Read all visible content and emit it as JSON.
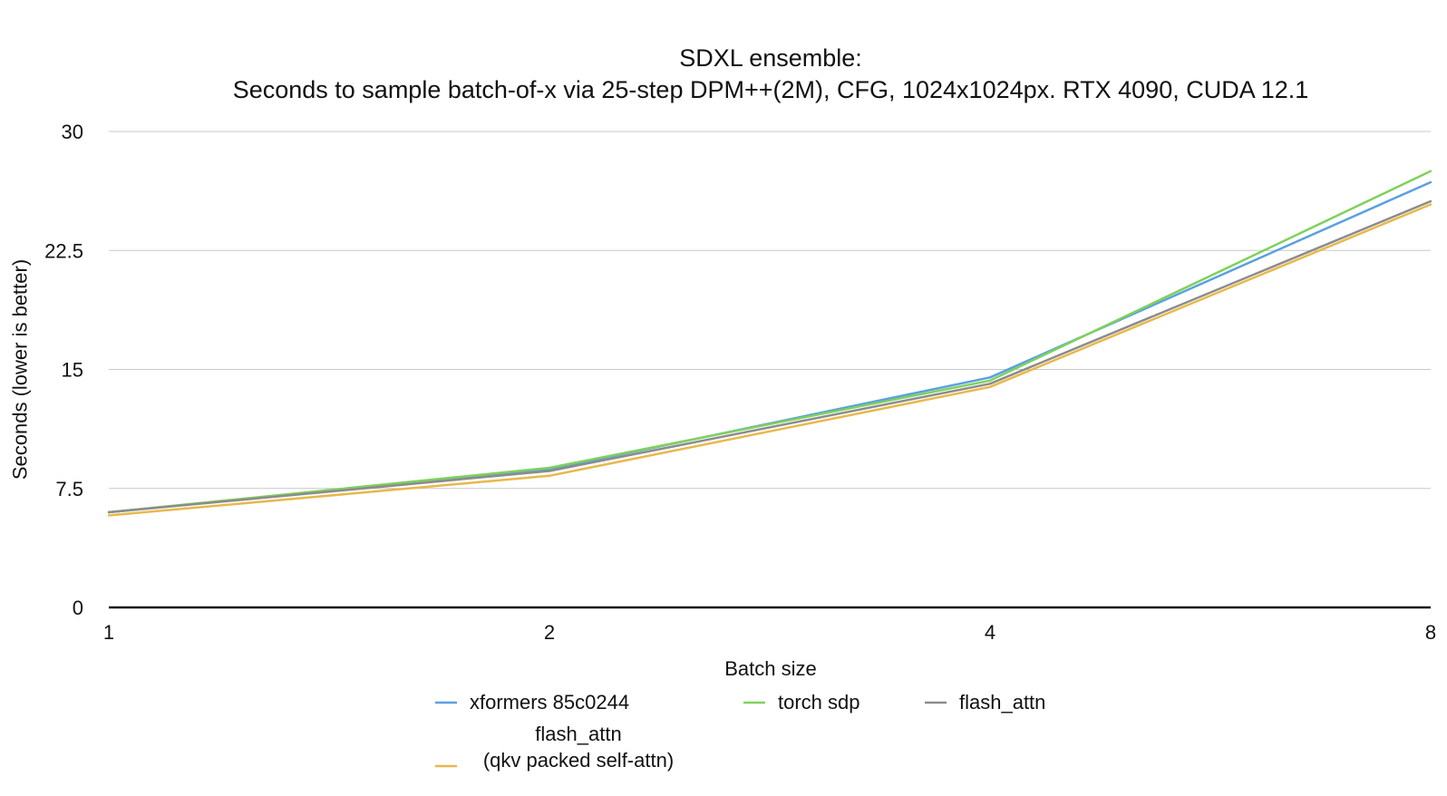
{
  "chart_data": {
    "type": "line",
    "title": "SDXL ensemble:",
    "subtitle": "Seconds to sample batch-of-x via 25-step DPM++(2M), CFG, 1024x1024px. RTX 4090, CUDA 12.1",
    "xlabel": "Batch size",
    "ylabel": "Seconds (lower is better)",
    "x": [
      1,
      2,
      4,
      8
    ],
    "x_tick_labels": [
      "1",
      "2",
      "4",
      "8"
    ],
    "x_scale": "log2",
    "ylim": [
      0,
      30
    ],
    "y_ticks": [
      0,
      7.5,
      15,
      22.5,
      30
    ],
    "y_tick_labels": [
      "0",
      "7.5",
      "15",
      "22.5",
      "30"
    ],
    "grid": true,
    "legend_position": "bottom",
    "series": [
      {
        "name": "xformers 85c0244",
        "color": "#5aa0e0",
        "values": [
          6.0,
          8.7,
          14.5,
          26.8
        ]
      },
      {
        "name": "torch sdp",
        "color": "#7fd15c",
        "values": [
          6.0,
          8.8,
          14.3,
          27.5
        ]
      },
      {
        "name": "flash_attn",
        "color": "#8c8c8c",
        "values": [
          6.0,
          8.6,
          14.1,
          25.6
        ]
      },
      {
        "name": "flash_attn\n(qkv packed self-attn)",
        "color": "#e8b84a",
        "values": [
          5.8,
          8.3,
          13.9,
          25.4
        ]
      }
    ]
  }
}
